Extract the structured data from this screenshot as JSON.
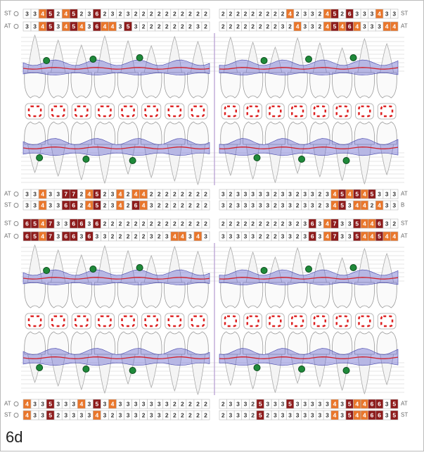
{
  "figure_label": "6d",
  "colors": {
    "4": "#e9762b",
    "5": "#8e1b1b",
    "6": "#8e1b1b",
    "7": "#8e1b1b"
  },
  "panels": [
    {
      "rows": [
        {
          "label": "ST",
          "label_right": "ST",
          "left": [
            3,
            3,
            4,
            5,
            2,
            4,
            5,
            2,
            3,
            6,
            2,
            3,
            2,
            3,
            2,
            2,
            2,
            2,
            2,
            2,
            2,
            2,
            2,
            2
          ],
          "right": [
            2,
            2,
            2,
            2,
            2,
            2,
            2,
            2,
            2,
            4,
            2,
            3,
            3,
            2,
            4,
            5,
            2,
            6,
            3,
            3,
            3,
            4,
            3,
            3
          ]
        },
        {
          "label": "AT",
          "label_right": "AT",
          "left": [
            3,
            3,
            4,
            5,
            3,
            4,
            5,
            4,
            3,
            6,
            4,
            4,
            3,
            5,
            3,
            2,
            2,
            2,
            2,
            2,
            2,
            2,
            3,
            2
          ],
          "right": [
            2,
            2,
            2,
            2,
            2,
            2,
            2,
            2,
            3,
            2,
            4,
            3,
            3,
            2,
            4,
            5,
            4,
            6,
            4,
            3,
            3,
            3,
            4,
            4
          ]
        },
        {
          "label": "AT",
          "label_right": "AT",
          "left": [
            3,
            3,
            4,
            3,
            3,
            7,
            7,
            2,
            4,
            5,
            2,
            3,
            4,
            2,
            4,
            4,
            2,
            2,
            2,
            2,
            2,
            2,
            2,
            2
          ],
          "right": [
            3,
            2,
            3,
            3,
            3,
            3,
            3,
            2,
            3,
            3,
            2,
            3,
            3,
            2,
            3,
            4,
            5,
            4,
            5,
            4,
            5,
            3,
            3,
            3
          ]
        },
        {
          "label": "ST",
          "label_right": "B",
          "left": [
            3,
            3,
            4,
            3,
            3,
            6,
            6,
            2,
            4,
            5,
            2,
            3,
            4,
            2,
            6,
            4,
            3,
            2,
            2,
            2,
            2,
            2,
            2,
            2
          ],
          "right": [
            3,
            2,
            3,
            3,
            3,
            3,
            3,
            2,
            3,
            3,
            2,
            3,
            3,
            2,
            3,
            4,
            5,
            3,
            4,
            4,
            2,
            4,
            3,
            3
          ]
        }
      ]
    },
    {
      "rows": [
        {
          "label": "ST",
          "label_right": "ST",
          "left": [
            6,
            5,
            4,
            7,
            3,
            3,
            6,
            6,
            3,
            6,
            2,
            2,
            2,
            2,
            2,
            2,
            2,
            2,
            2,
            2,
            2,
            2,
            2,
            2
          ],
          "right": [
            2,
            2,
            2,
            2,
            2,
            2,
            2,
            2,
            2,
            3,
            2,
            3,
            6,
            3,
            4,
            7,
            3,
            3,
            5,
            4,
            4,
            6,
            3,
            2
          ]
        },
        {
          "label": "AT",
          "label_right": "AT",
          "left": [
            6,
            5,
            4,
            7,
            3,
            6,
            6,
            3,
            6,
            3,
            3,
            2,
            2,
            2,
            2,
            2,
            3,
            2,
            3,
            4,
            4,
            3,
            4,
            3
          ],
          "right": [
            3,
            3,
            3,
            3,
            3,
            2,
            2,
            2,
            3,
            3,
            2,
            3,
            6,
            3,
            4,
            7,
            3,
            3,
            5,
            4,
            4,
            5,
            4,
            4
          ]
        },
        {
          "label": "AT",
          "label_right": "AT",
          "left": [
            4,
            3,
            3,
            5,
            3,
            3,
            3,
            4,
            3,
            5,
            3,
            4,
            3,
            3,
            3,
            3,
            3,
            3,
            3,
            2,
            2,
            2,
            2,
            2
          ],
          "right": [
            2,
            3,
            3,
            3,
            2,
            5,
            3,
            3,
            3,
            5,
            3,
            3,
            3,
            3,
            3,
            4,
            3,
            5,
            4,
            4,
            6,
            6,
            3,
            5
          ]
        },
        {
          "label": "ST",
          "label_right": "ST",
          "left": [
            4,
            3,
            3,
            5,
            2,
            3,
            3,
            3,
            3,
            4,
            3,
            2,
            3,
            3,
            3,
            2,
            3,
            3,
            2,
            2,
            2,
            2,
            2,
            2
          ],
          "right": [
            2,
            3,
            3,
            3,
            2,
            5,
            2,
            3,
            3,
            3,
            3,
            3,
            3,
            3,
            3,
            4,
            3,
            5,
            4,
            4,
            6,
            6,
            3,
            5
          ]
        }
      ]
    }
  ]
}
